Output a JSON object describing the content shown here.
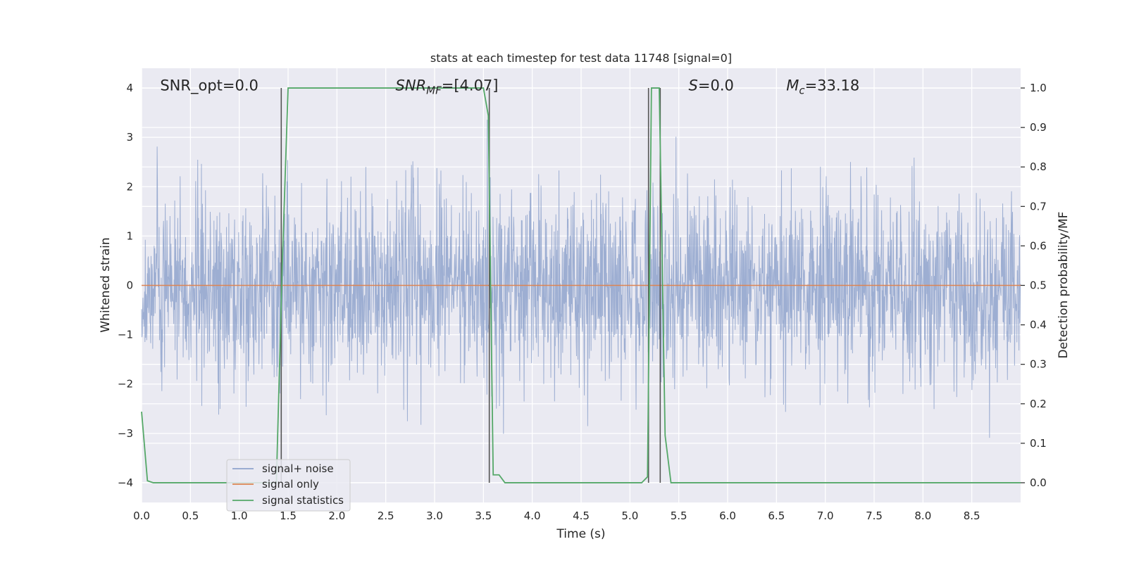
{
  "chart_data": {
    "type": "line",
    "title": "stats at each timestep for test data 11748 [signal=0]",
    "xlabel": "Time (s)",
    "ylabel_left": "Whitened strain",
    "ylabel_right": "Detection probability/MF",
    "xlim": [
      0.0,
      9.0
    ],
    "ylim_left": [
      -4.4,
      4.4
    ],
    "ylim_right": [
      -0.05,
      1.05
    ],
    "x_ticks": [
      0.0,
      0.5,
      1.0,
      1.5,
      2.0,
      2.5,
      3.0,
      3.5,
      4.0,
      4.5,
      5.0,
      5.5,
      6.0,
      6.5,
      7.0,
      7.5,
      8.0,
      8.5
    ],
    "x_tick_labels": [
      "0.0",
      "0.5",
      "1.0",
      "1.5",
      "2.0",
      "2.5",
      "3.0",
      "3.5",
      "4.0",
      "4.5",
      "5.0",
      "5.5",
      "6.0",
      "6.5",
      "7.0",
      "7.5",
      "8.0",
      "8.5"
    ],
    "y_left_ticks": [
      -4,
      -3,
      -2,
      -1,
      0,
      1,
      2,
      3,
      4
    ],
    "y_left_tick_labels": [
      "−4",
      "−3",
      "−2",
      "−1",
      "0",
      "1",
      "2",
      "3",
      "4"
    ],
    "y_right_ticks": [
      0.0,
      0.1,
      0.2,
      0.3,
      0.4,
      0.5,
      0.6,
      0.7,
      0.8,
      0.9,
      1.0
    ],
    "y_right_tick_labels": [
      "0.0",
      "0.1",
      "0.2",
      "0.3",
      "0.4",
      "0.5",
      "0.6",
      "0.7",
      "0.8",
      "0.9",
      "1.0"
    ],
    "grid": true,
    "legend_position": "lower-left",
    "annotations": [
      {
        "id": "snr-opt",
        "text": "SNR_opt=0.0",
        "x": 0.19,
        "y": 4.05
      },
      {
        "id": "snr-mf",
        "text": "SNR_MF=[4.07]",
        "x": 2.6,
        "y": 4.05
      },
      {
        "id": "s-value",
        "text": "S=0.0",
        "x": 5.6,
        "y": 4.05
      },
      {
        "id": "mc-value",
        "text": "M_c=33.18",
        "x": 6.6,
        "y": 4.05
      }
    ],
    "series": [
      {
        "name": "signal+ noise",
        "color": "#8fa3cc",
        "axis": "left",
        "description": "whitened strain noise, approx. std 0.9, values within about [-3.8, 3.6]"
      },
      {
        "name": "signal only",
        "color": "#dd8452",
        "axis": "left",
        "x": [
          0.0,
          9.0
        ],
        "y": [
          0.0,
          0.0
        ]
      },
      {
        "name": "signal statistics",
        "color": "#55a868",
        "axis": "right",
        "x": [
          0.0,
          0.06,
          0.12,
          1.38,
          1.44,
          1.5,
          3.5,
          3.55,
          3.6,
          3.66,
          3.72,
          5.12,
          5.18,
          5.22,
          5.25,
          5.3,
          5.36,
          5.42,
          9.0
        ],
        "y": [
          0.18,
          0.005,
          0.0,
          0.0,
          0.55,
          1.0,
          1.0,
          0.93,
          0.02,
          0.02,
          0.0,
          0.0,
          0.015,
          1.0,
          1.0,
          1.0,
          0.12,
          0.0,
          0.0
        ]
      }
    ],
    "vlines": {
      "color": "#555555",
      "x": [
        1.43,
        3.56,
        5.19,
        5.31
      ]
    }
  },
  "legend": {
    "items": [
      {
        "label": "signal+ noise",
        "color": "#8fa3cc"
      },
      {
        "label": "signal only",
        "color": "#dd8452"
      },
      {
        "label": "signal statistics",
        "color": "#55a868"
      }
    ]
  },
  "style": {
    "plot_background": "#eaeaf2",
    "grid_color": "#ffffff"
  }
}
